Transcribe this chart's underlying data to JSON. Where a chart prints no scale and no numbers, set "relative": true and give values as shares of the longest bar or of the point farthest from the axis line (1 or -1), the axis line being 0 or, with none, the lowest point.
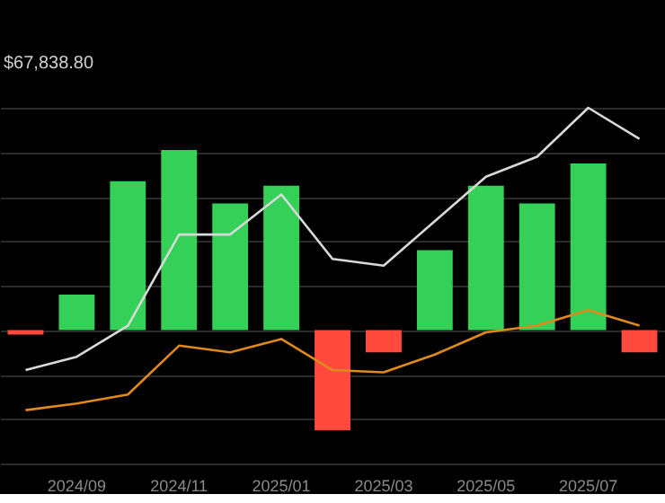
{
  "chart_data": {
    "type": "bar",
    "relative": true,
    "annotations": [
      "$67,838.80"
    ],
    "categories": [
      null,
      "2024/09",
      null,
      "2024/11",
      null,
      "2025/01",
      null,
      "2025/03",
      null,
      "2025/05",
      null,
      "2025/07",
      null
    ],
    "series": [
      {
        "values": [
          -0.02,
          0.16,
          0.67,
          0.81,
          0.57,
          0.65,
          -0.45,
          -0.1,
          0.36,
          0.65,
          0.57,
          0.75,
          -0.1
        ],
        "colors": [
          "#ff4a3d",
          "#34d058",
          "#34d058",
          "#34d058",
          "#34d058",
          "#34d058",
          "#ff4a3d",
          "#ff4a3d",
          "#34d058",
          "#34d058",
          "#34d058",
          "#34d058",
          "#ff4a3d"
        ]
      },
      {
        "type": "line",
        "color": "#d9d9d9",
        "values": [
          -0.18,
          -0.12,
          0.02,
          0.43,
          0.43,
          0.61,
          0.32,
          0.29,
          0.49,
          0.69,
          0.78,
          1,
          0.86
        ]
      },
      {
        "type": "line",
        "color": "#e08a1e",
        "values": [
          -0.36,
          -0.33,
          -0.29,
          -0.07,
          -0.1,
          -0.04,
          -0.18,
          -0.19,
          -0.11,
          -0.01,
          0.02,
          0.09,
          0.02
        ]
      }
    ],
    "grid": "y"
  }
}
